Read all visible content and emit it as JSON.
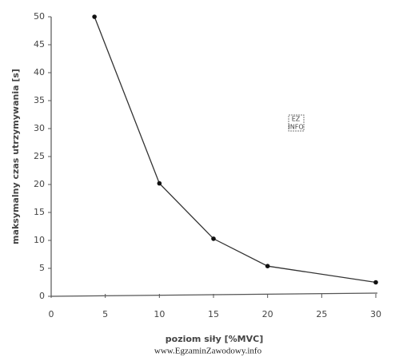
{
  "chart_data": {
    "type": "line",
    "x_label": "poziom siły [%MVC]",
    "y_label": "maksymalny czas utrzymywania [s]",
    "x": [
      4,
      10,
      15,
      20,
      30
    ],
    "series": [
      {
        "color": "#333333",
        "values": [
          50,
          20.2,
          10.3,
          5.4,
          2.5
        ]
      }
    ],
    "xlim": [
      0,
      30
    ],
    "xticks": [
      0,
      5,
      10,
      15,
      20,
      25,
      30
    ],
    "ylim": [
      0,
      50
    ],
    "yticks": [
      0,
      5,
      10,
      15,
      20,
      25,
      30,
      35,
      40,
      45,
      50
    ],
    "grid": false
  },
  "logo": [
    "EZ",
    "INFO"
  ],
  "watermark": "www.EgzaminZawodowy.info"
}
